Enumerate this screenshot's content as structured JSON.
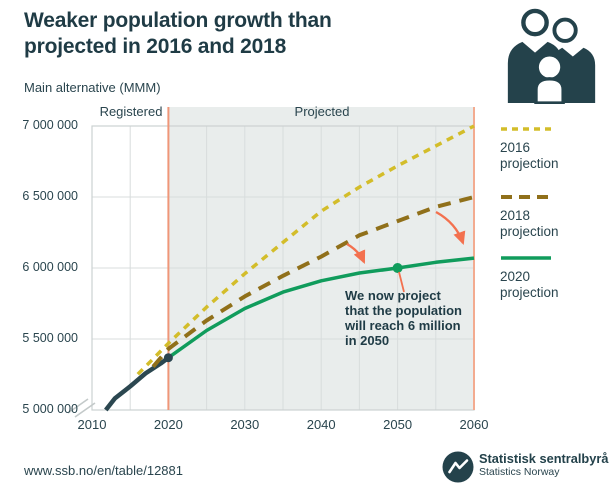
{
  "header": {
    "title": "Weaker population growth than\nprojected in 2016 and 2018",
    "subtitle": "Main alternative (MMM)"
  },
  "theme": {
    "title_color": "#1f3b45",
    "text_color": "#2a454e",
    "brand_dark_teal": "#24424b",
    "annotation_coral": "#f3714f"
  },
  "chart_data": {
    "type": "line",
    "title": "Weaker population growth than projected in 2016 and 2018",
    "subtitle": "Main alternative (MMM)",
    "grid": true,
    "x_axis": {
      "ticks": [
        2010,
        2020,
        2030,
        2040,
        2050,
        2060
      ],
      "minor_gridline_step_years": 5,
      "range": [
        2010,
        2060
      ]
    },
    "y_axis": {
      "tick_labels": [
        "5 000 000",
        "5 500 000",
        "6 000 000",
        "6 500 000",
        "7 000 000"
      ],
      "tick_values": [
        5000000,
        5500000,
        6000000,
        6500000,
        7000000
      ],
      "range": [
        5000000,
        7000000
      ],
      "axis_break_below_first_tick": true
    },
    "regions": [
      {
        "label": "Registered",
        "from": 2010,
        "to": 2020,
        "bg": "#ffffff"
      },
      {
        "label": "Projected",
        "from": 2020,
        "to": 2060,
        "bg": "#e9edec",
        "edge_color_left": "#ef9678",
        "edge_color_right": "#f3ab90"
      }
    ],
    "gridline_color": "#d8dddd",
    "border_color": "#ccd2d2",
    "series": [
      {
        "name": "Registered population",
        "color": "#2b4750",
        "width": 4.5,
        "dash": "",
        "legend_label": "",
        "points": [
          [
            2011.8,
            5000000
          ],
          [
            2013,
            5082000
          ],
          [
            2015,
            5166000
          ],
          [
            2017,
            5258000
          ],
          [
            2019,
            5328000
          ],
          [
            2020,
            5368000
          ]
        ]
      },
      {
        "name": "2016 projection",
        "color": "#d3bd2a",
        "width": 3.5,
        "dash": "7 6",
        "legend_label": "2016\nprojection",
        "legend_dash": "6 5",
        "points": [
          [
            2016,
            5252000
          ],
          [
            2018,
            5360000
          ],
          [
            2020,
            5470000
          ],
          [
            2025,
            5725000
          ],
          [
            2030,
            5960000
          ],
          [
            2035,
            6180000
          ],
          [
            2040,
            6400000
          ],
          [
            2045,
            6570000
          ],
          [
            2050,
            6720000
          ],
          [
            2055,
            6860000
          ],
          [
            2060,
            7000000
          ]
        ]
      },
      {
        "name": "2018 projection",
        "color": "#90701a",
        "width": 4,
        "dash": "13 9",
        "legend_label": "2018\nprojection",
        "legend_dash": "11 7",
        "points": [
          [
            2018,
            5305000
          ],
          [
            2020,
            5430000
          ],
          [
            2025,
            5630000
          ],
          [
            2030,
            5800000
          ],
          [
            2035,
            5945000
          ],
          [
            2040,
            6080000
          ],
          [
            2045,
            6230000
          ],
          [
            2050,
            6330000
          ],
          [
            2055,
            6430000
          ],
          [
            2060,
            6500000
          ]
        ]
      },
      {
        "name": "2020 projection",
        "color": "#109c5c",
        "width": 3.5,
        "dash": "",
        "legend_label": "2020\nprojection",
        "points": [
          [
            2020,
            5368000
          ],
          [
            2025,
            5560000
          ],
          [
            2030,
            5715000
          ],
          [
            2035,
            5830000
          ],
          [
            2040,
            5910000
          ],
          [
            2045,
            5965000
          ],
          [
            2050,
            6000000
          ],
          [
            2055,
            6040000
          ],
          [
            2060,
            6070000
          ]
        ]
      }
    ],
    "markers": [
      {
        "year": 2020,
        "value": 5368000,
        "color": "#2b4550",
        "r": 4.5,
        "name": "registered-2020-point"
      },
      {
        "year": 2050,
        "value": 6000000,
        "color": "#109c5c",
        "r": 5,
        "name": "six-million-2050-point"
      }
    ],
    "annotation": {
      "text": "We now project\nthat the population\nwill reach 6 million\nin 2050",
      "color": "#f3714f"
    }
  },
  "footer": {
    "url": "www.ssb.no/en/table/12881",
    "org_name": "Statistisk sentralbyrå",
    "org_name_en": "Statistics Norway"
  }
}
